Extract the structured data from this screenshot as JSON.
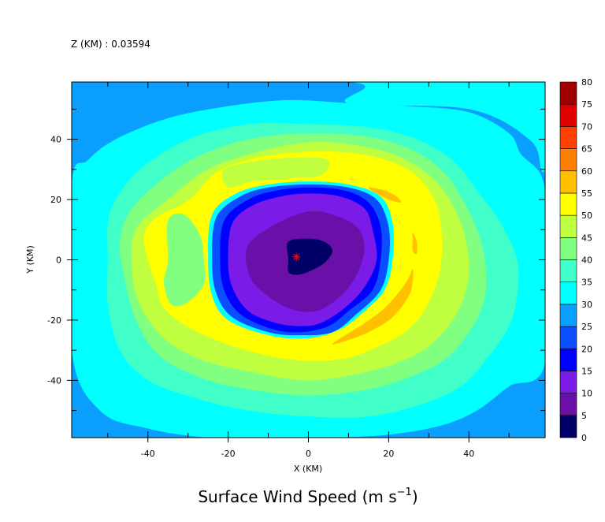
{
  "chart_data": {
    "type": "heatmap",
    "level_label": "Z (KM) : 0.03594",
    "title": "Surface Wind Speed",
    "xlabel": "X (KM)",
    "ylabel": "Y (KM)",
    "xlim": [
      -59,
      59
    ],
    "ylim": [
      -59,
      59
    ],
    "x_ticks": [
      -40,
      -20,
      0,
      20,
      40
    ],
    "y_ticks": [
      -40,
      -20,
      0,
      20,
      40
    ],
    "colorbar": {
      "levels": [
        0,
        5,
        10,
        15,
        20,
        25,
        30,
        35,
        40,
        45,
        50,
        55,
        60,
        65,
        70,
        75,
        80
      ],
      "colors": [
        "#000066",
        "#6a0fa8",
        "#7a1be8",
        "#0000ff",
        "#0a4eff",
        "#0a9fff",
        "#00ffff",
        "#40ffc8",
        "#80ff80",
        "#c0ff40",
        "#ffff00",
        "#ffc000",
        "#ff8000",
        "#ff4000",
        "#e00000",
        "#a00000"
      ]
    },
    "field_contours": [
      {
        "level": 0,
        "value": 30,
        "points": [
          [
            -59,
            59
          ],
          [
            59,
            59
          ],
          [
            59,
            -59
          ],
          [
            -59,
            -59
          ]
        ]
      },
      {
        "level": 1,
        "value": 25,
        "points": [
          [
            -59,
            59
          ],
          [
            10,
            59
          ],
          [
            10,
            52
          ],
          [
            40,
            50
          ],
          [
            55,
            40
          ],
          [
            58,
            30
          ],
          [
            59,
            20
          ],
          [
            59,
            -59
          ],
          [
            -59,
            -59
          ],
          [
            -59,
            35
          ]
        ]
      },
      {
        "level": 2,
        "value": 30,
        "points": [
          [
            -55,
            33
          ],
          [
            -48,
            40
          ],
          [
            -35,
            47
          ],
          [
            -20,
            51
          ],
          [
            -5,
            53
          ],
          [
            10,
            52
          ],
          [
            25,
            51
          ],
          [
            40,
            49
          ],
          [
            50,
            42
          ],
          [
            53,
            35
          ],
          [
            58,
            28
          ],
          [
            59,
            15
          ],
          [
            59,
            -34
          ],
          [
            50,
            -42
          ],
          [
            42,
            -50
          ],
          [
            33,
            -55
          ],
          [
            20,
            -58
          ],
          [
            5,
            -59
          ],
          [
            -10,
            -59
          ],
          [
            -25,
            -59
          ],
          [
            -40,
            -56
          ],
          [
            -52,
            -50
          ],
          [
            -59,
            -30
          ],
          [
            -59,
            25
          ]
        ]
      },
      {
        "level": 3,
        "value": 35,
        "points": [
          [
            -48,
            20
          ],
          [
            -42,
            30
          ],
          [
            -30,
            40
          ],
          [
            -15,
            45
          ],
          [
            0,
            45
          ],
          [
            15,
            44
          ],
          [
            27,
            40
          ],
          [
            36,
            33
          ],
          [
            42,
            23
          ],
          [
            48,
            12
          ],
          [
            52,
            0
          ],
          [
            52,
            -12
          ],
          [
            50,
            -22
          ],
          [
            45,
            -32
          ],
          [
            38,
            -42
          ],
          [
            28,
            -48
          ],
          [
            15,
            -52
          ],
          [
            0,
            -52
          ],
          [
            -15,
            -50
          ],
          [
            -28,
            -46
          ],
          [
            -40,
            -40
          ],
          [
            -47,
            -30
          ],
          [
            -50,
            -15
          ],
          [
            -50,
            0
          ],
          [
            -50,
            12
          ]
        ]
      },
      {
        "level": 4,
        "value": 40,
        "points": [
          [
            -45,
            15
          ],
          [
            -38,
            25
          ],
          [
            -28,
            34
          ],
          [
            -15,
            40
          ],
          [
            0,
            42
          ],
          [
            14,
            41
          ],
          [
            25,
            37
          ],
          [
            33,
            30
          ],
          [
            38,
            21
          ],
          [
            42,
            10
          ],
          [
            44,
            0
          ],
          [
            44,
            -12
          ],
          [
            41,
            -22
          ],
          [
            35,
            -32
          ],
          [
            27,
            -38
          ],
          [
            15,
            -43
          ],
          [
            0,
            -45
          ],
          [
            -15,
            -43
          ],
          [
            -27,
            -39
          ],
          [
            -37,
            -32
          ],
          [
            -43,
            -20
          ],
          [
            -46,
            -5
          ],
          [
            -47,
            5
          ]
        ]
      },
      {
        "level": 5,
        "value": 45,
        "points": [
          [
            -43,
            10
          ],
          [
            -35,
            20
          ],
          [
            -25,
            30
          ],
          [
            -12,
            36
          ],
          [
            0,
            39
          ],
          [
            12,
            38
          ],
          [
            23,
            34
          ],
          [
            31,
            27
          ],
          [
            36,
            18
          ],
          [
            39,
            8
          ],
          [
            40,
            -4
          ],
          [
            38,
            -15
          ],
          [
            33,
            -25
          ],
          [
            26,
            -32
          ],
          [
            15,
            -37
          ],
          [
            0,
            -40
          ],
          [
            -15,
            -37
          ],
          [
            -27,
            -33
          ],
          [
            -36,
            -26
          ],
          [
            -42,
            -15
          ],
          [
            -44,
            -3
          ]
        ]
      },
      {
        "level": 6,
        "value": 50,
        "points": [
          [
            -38,
            14
          ],
          [
            -32,
            18
          ],
          [
            -28,
            22
          ],
          [
            -24,
            28
          ],
          [
            -18,
            32
          ],
          [
            -8,
            35
          ],
          [
            5,
            36
          ],
          [
            17,
            34
          ],
          [
            26,
            29
          ],
          [
            31,
            21
          ],
          [
            33,
            12
          ],
          [
            33,
            -2
          ],
          [
            30,
            -14
          ],
          [
            25,
            -23
          ],
          [
            17,
            -29
          ],
          [
            8,
            -33
          ],
          [
            -5,
            -33
          ],
          [
            -18,
            -29
          ],
          [
            -29,
            -23
          ],
          [
            -36,
            -16
          ],
          [
            -38,
            -8
          ],
          [
            -40,
            0
          ],
          [
            -41,
            8
          ]
        ]
      },
      {
        "level": 7,
        "value": 40,
        "points": [
          [
            -35,
            13
          ],
          [
            -31,
            15
          ],
          [
            -27,
            8
          ],
          [
            -26,
            -1
          ],
          [
            -26,
            -8
          ],
          [
            -30,
            -14
          ],
          [
            -34,
            -15
          ],
          [
            -36,
            -8
          ],
          [
            -35,
            0
          ]
        ]
      },
      {
        "level": 8,
        "value": 45,
        "points": [
          [
            -21,
            30
          ],
          [
            -12,
            33
          ],
          [
            -2,
            34
          ],
          [
            5,
            33
          ],
          [
            3,
            28
          ],
          [
            -5,
            27
          ],
          [
            -14,
            26
          ],
          [
            -20,
            24
          ]
        ]
      },
      {
        "level": 9,
        "value": 55,
        "points": [
          [
            15,
            24
          ],
          [
            19,
            23
          ],
          [
            22,
            21
          ],
          [
            23,
            19
          ],
          [
            20,
            20
          ],
          [
            17,
            22
          ]
        ]
      },
      {
        "level": 10,
        "value": 55,
        "points": [
          [
            26,
            -3
          ],
          [
            25,
            -6
          ],
          [
            23,
            -10
          ],
          [
            19,
            -16
          ],
          [
            14,
            -21
          ],
          [
            8,
            -26
          ],
          [
            6,
            -28
          ],
          [
            9,
            -27
          ],
          [
            15,
            -24
          ],
          [
            21,
            -19
          ],
          [
            25,
            -12
          ],
          [
            26,
            -7
          ]
        ]
      },
      {
        "level": 11,
        "value": 55,
        "points": [
          [
            26,
            9
          ],
          [
            27,
            6
          ],
          [
            27,
            2
          ],
          [
            26,
            3
          ],
          [
            26,
            7
          ]
        ]
      },
      {
        "level": 12,
        "value": 30,
        "points": [
          [
            -24,
            15
          ],
          [
            -18,
            22
          ],
          [
            -10,
            25
          ],
          [
            0,
            26
          ],
          [
            10,
            25
          ],
          [
            18,
            21
          ],
          [
            21,
            12
          ],
          [
            21,
            0
          ],
          [
            19,
            -10
          ],
          [
            14,
            -17
          ],
          [
            8,
            -23
          ],
          [
            0,
            -26
          ],
          [
            -10,
            -25
          ],
          [
            -20,
            -20
          ],
          [
            -24,
            -12
          ],
          [
            -25,
            0
          ]
        ]
      },
      {
        "level": 13,
        "value": 20,
        "points": [
          [
            -23,
            14
          ],
          [
            -17,
            21
          ],
          [
            -10,
            24
          ],
          [
            0,
            25
          ],
          [
            10,
            24
          ],
          [
            17,
            20
          ],
          [
            20,
            11
          ],
          [
            20,
            0
          ],
          [
            18,
            -10
          ],
          [
            12,
            -18
          ],
          [
            6,
            -24
          ],
          [
            -2,
            -25
          ],
          [
            -10,
            -24
          ],
          [
            -19,
            -19
          ],
          [
            -23,
            -11
          ],
          [
            -24,
            0
          ]
        ]
      },
      {
        "level": 14,
        "value": 15,
        "points": [
          [
            -21,
            13
          ],
          [
            -15,
            20
          ],
          [
            -8,
            23
          ],
          [
            0,
            24
          ],
          [
            9,
            23
          ],
          [
            15,
            19
          ],
          [
            18,
            11
          ],
          [
            18,
            0
          ],
          [
            16,
            -10
          ],
          [
            10,
            -17
          ],
          [
            5,
            -22
          ],
          [
            -2,
            -24
          ],
          [
            -9,
            -23
          ],
          [
            -17,
            -18
          ],
          [
            -21,
            -10
          ],
          [
            -22,
            0
          ]
        ]
      },
      {
        "level": 15,
        "value": 10,
        "points": [
          [
            -19,
            12
          ],
          [
            -14,
            18
          ],
          [
            -7,
            21
          ],
          [
            0,
            22
          ],
          [
            8,
            21
          ],
          [
            14,
            17
          ],
          [
            16,
            10
          ],
          [
            17,
            0
          ],
          [
            14,
            -9
          ],
          [
            9,
            -16
          ],
          [
            3,
            -21
          ],
          [
            -2,
            -22
          ],
          [
            -8,
            -21
          ],
          [
            -15,
            -17
          ],
          [
            -19,
            -9
          ],
          [
            -20,
            0
          ]
        ]
      },
      {
        "level": 16,
        "value": 5,
        "points": [
          [
            -15,
            5
          ],
          [
            -8,
            12
          ],
          [
            0,
            16
          ],
          [
            6,
            15
          ],
          [
            12,
            11
          ],
          [
            14,
            4
          ],
          [
            12,
            -5
          ],
          [
            8,
            -12
          ],
          [
            2,
            -17
          ],
          [
            -5,
            -16
          ],
          [
            -12,
            -10
          ],
          [
            -15,
            -4
          ]
        ]
      },
      {
        "level": 17,
        "value": 0,
        "points": [
          [
            -5,
            6
          ],
          [
            0,
            7
          ],
          [
            4,
            6
          ],
          [
            6,
            3
          ],
          [
            4,
            -1
          ],
          [
            0,
            -4
          ],
          [
            -3,
            -5
          ],
          [
            -5,
            -4
          ],
          [
            -5,
            0
          ]
        ]
      }
    ],
    "center_marker": {
      "symbol": "*",
      "x": -3,
      "y": 1,
      "color": "#ff0000"
    }
  }
}
